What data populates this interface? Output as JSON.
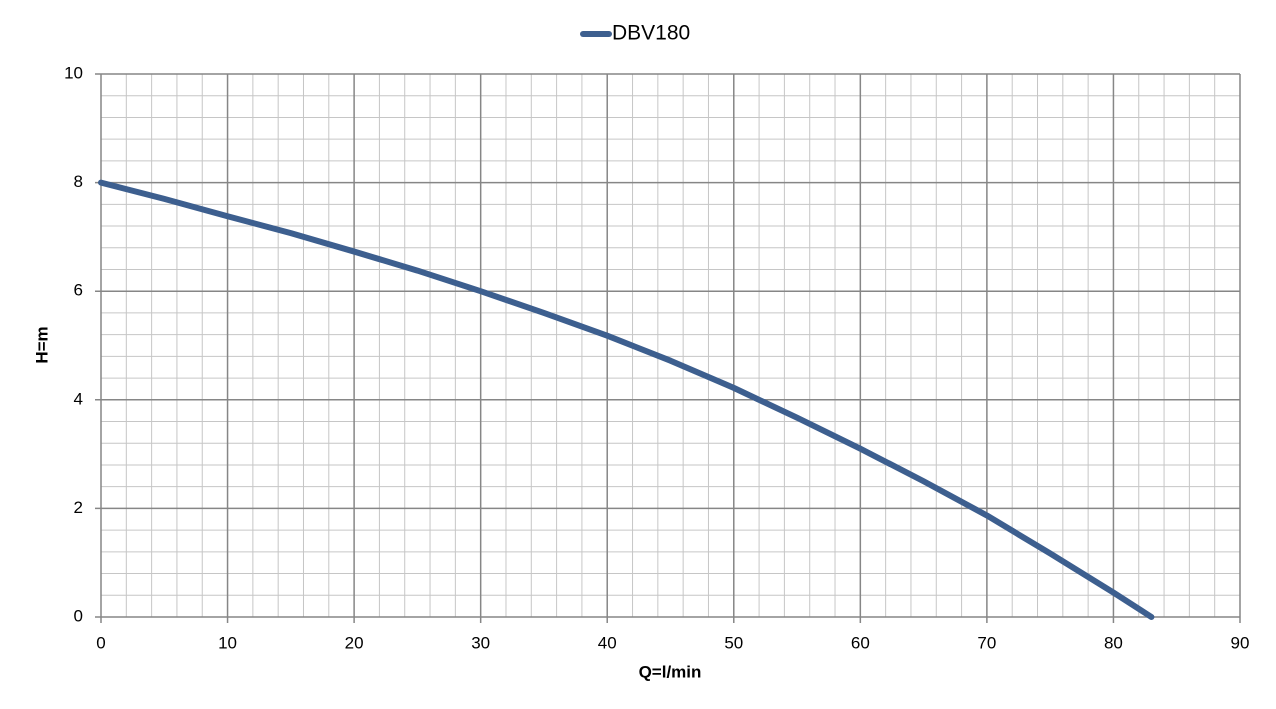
{
  "chart_data": {
    "type": "line",
    "xlabel": "Q=l/min",
    "ylabel": "H=m",
    "x": [
      0,
      5,
      10,
      15,
      20,
      25,
      30,
      35,
      40,
      45,
      50,
      55,
      60,
      65,
      70,
      75,
      80,
      83
    ],
    "series": [
      {
        "name": "DBV180",
        "color": "#3d5f8f",
        "values": [
          8.0,
          7.7,
          7.38,
          7.07,
          6.73,
          6.38,
          6.0,
          5.6,
          5.18,
          4.72,
          4.22,
          3.67,
          3.1,
          2.5,
          1.87,
          1.17,
          0.45,
          0.0
        ]
      }
    ],
    "xlim": [
      0,
      90
    ],
    "ylim": [
      0,
      10
    ],
    "xticks": [
      0,
      10,
      20,
      30,
      40,
      50,
      60,
      70,
      80,
      90
    ],
    "yticks": [
      0,
      2,
      4,
      6,
      8,
      10
    ],
    "xminorticks": [
      2,
      4,
      6,
      8,
      12,
      14,
      16,
      18,
      22,
      24,
      26,
      28,
      32,
      34,
      36,
      38,
      42,
      44,
      46,
      48,
      52,
      54,
      56,
      58,
      62,
      64,
      66,
      68,
      72,
      74,
      76,
      78,
      82,
      84,
      86,
      88
    ],
    "yminorticks": [
      0.4,
      0.8,
      1.2,
      1.6,
      2.4,
      2.8,
      3.2,
      3.6,
      4.4,
      4.8,
      5.2,
      5.6,
      6.4,
      6.8,
      7.2,
      7.6,
      8.4,
      8.8,
      9.2,
      9.6
    ],
    "grid": true,
    "legend": "top"
  }
}
